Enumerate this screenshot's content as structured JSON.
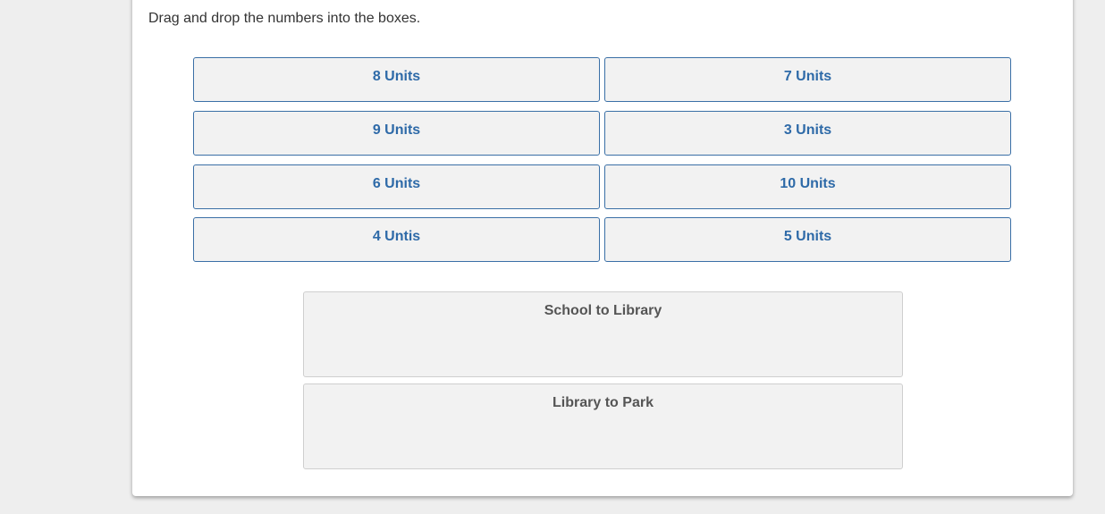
{
  "instruction": "Drag and drop the numbers into the boxes.",
  "tiles": [
    "8 Units",
    "7 Units",
    "9 Units",
    "3 Units",
    "6 Units",
    "10 Units",
    "4 Untis",
    "5 Units"
  ],
  "drop_zones": [
    "School to Library",
    "Library to Park"
  ],
  "colors": {
    "tile_text": "#2e6aa8",
    "tile_border": "#3a6fa6",
    "zone_text": "#555555"
  }
}
